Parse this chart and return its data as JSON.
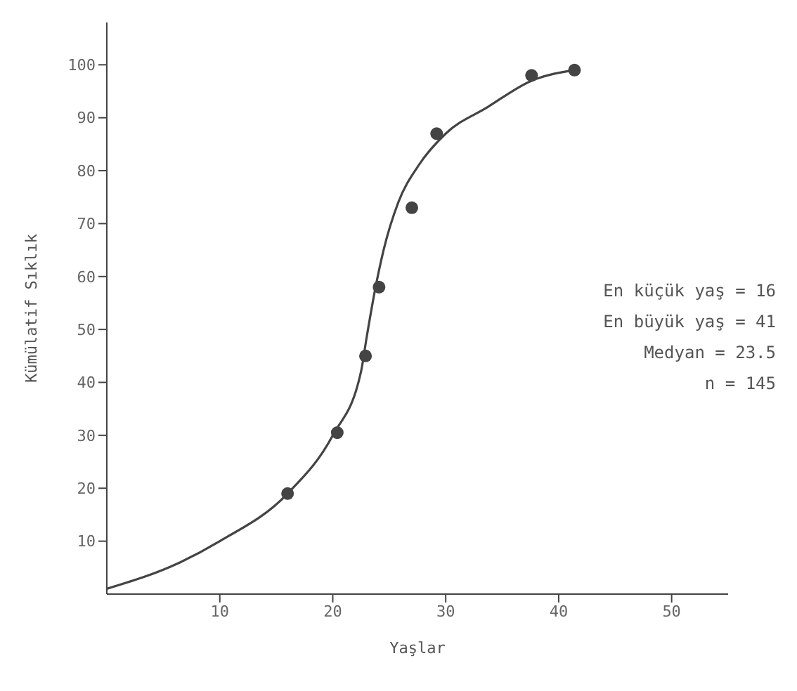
{
  "chart_data": {
    "type": "scatter",
    "xlabel": "Yaşlar",
    "ylabel": "Kümülatif Sıklık",
    "xlim": [
      0,
      55
    ],
    "xticks": [
      10,
      20,
      30,
      40,
      50
    ],
    "ylim": [
      0,
      108
    ],
    "yticks": [
      10,
      20,
      30,
      40,
      50,
      60,
      70,
      80,
      90,
      100
    ],
    "grid": false,
    "annotations": [
      "En küçük yaş = 16",
      "En büyük yaş = 41",
      "Medyan = 23.5",
      "n = 145"
    ],
    "series": [
      {
        "marker": "circle",
        "color": "#444444",
        "x": [
          16,
          20.4,
          22.9,
          24.1,
          27,
          29.2,
          37.6,
          41.4
        ],
        "values": [
          19,
          30.5,
          45,
          58,
          73,
          87,
          98,
          99
        ]
      },
      {
        "type": "line",
        "marker": "none",
        "line_style": "solid",
        "color": "#444444",
        "x": [
          0,
          6.5,
          10,
          16,
          20,
          22.5,
          23,
          23.7,
          24.5,
          25.8,
          27.6,
          30,
          33.7,
          37.6,
          41.4
        ],
        "values": [
          1,
          6,
          10,
          19,
          30,
          42,
          48.5,
          57,
          65,
          74,
          81,
          87,
          92,
          97,
          99
        ]
      }
    ]
  }
}
